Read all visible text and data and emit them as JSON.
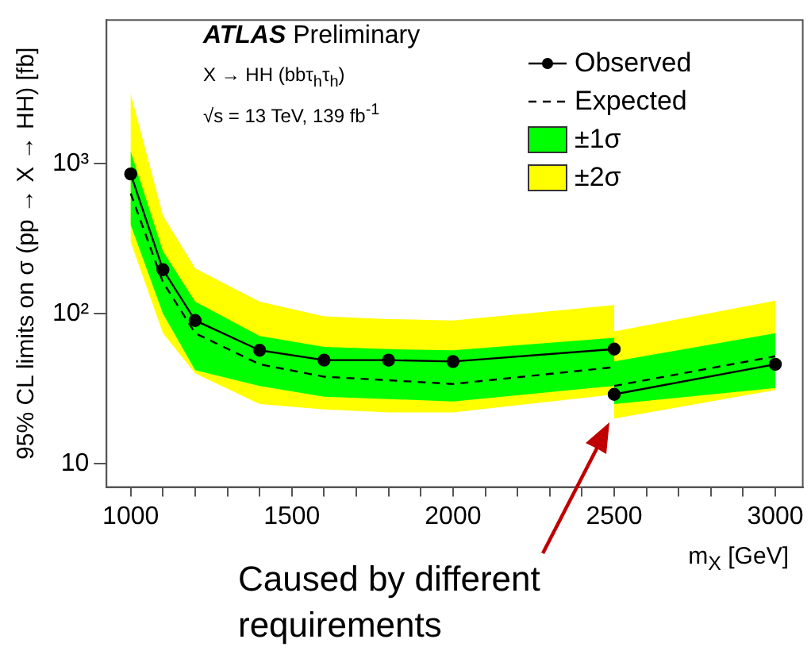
{
  "chart_data": {
    "type": "line",
    "title": "ATLAS Preliminary",
    "xlabel": "m$_{X}$ [GeV]",
    "ylabel": "95% CL limits on σ (pp → X → HH) [fb]",
    "annotations": [
      "X → HH (bbτ$_{h}$τ$_{h}$)",
      "√s = 13 TeV, 139 fb$^{-1}$",
      "Caused by different requirements"
    ],
    "log": "y",
    "xlim": [
      925,
      3085
    ],
    "ylim": [
      7,
      9000
    ],
    "xticks": [
      1000,
      {
        "value": 1100,
        "label": null
      },
      {
        "value": 1200,
        "label": null
      },
      {
        "value": 1300,
        "label": null
      },
      {
        "value": 1400,
        "label": null
      },
      1500,
      {
        "value": 1600,
        "label": null
      },
      {
        "value": 1700,
        "label": null
      },
      {
        "value": 1800,
        "label": null
      },
      {
        "value": 1900,
        "label": null
      },
      2000,
      {
        "value": 2100,
        "label": null
      },
      {
        "value": 2200,
        "label": null
      },
      {
        "value": 2300,
        "label": null
      },
      {
        "value": 2400,
        "label": null
      },
      2500,
      {
        "value": 2600,
        "label": null
      },
      {
        "value": 2700,
        "label": null
      },
      {
        "value": 2800,
        "label": null
      },
      {
        "value": 2900,
        "label": null
      },
      3000
    ],
    "yticks": [
      10,
      {
        "value": 100,
        "label": "10²"
      },
      {
        "value": 1000,
        "label": "10³"
      }
    ],
    "legend": "top right",
    "series": [
      {
        "name": "Observed",
        "color": "#000000",
        "marker": "circle",
        "line_style": "solid",
        "x": [
          1000,
          1100,
          1200,
          1400,
          1600,
          1800,
          2000,
          2500,
          null,
          2500,
          3000
        ],
        "values": [
          850,
          196,
          90,
          57,
          49,
          49,
          48,
          58,
          null,
          29,
          46
        ]
      },
      {
        "name": "Expected",
        "color": "#000000",
        "marker": "none",
        "line_style": "dashed",
        "x": [
          1000,
          1100,
          1200,
          1400,
          1600,
          1800,
          2000,
          2500,
          null,
          2500,
          3000
        ],
        "values": [
          630,
          162,
          74,
          46,
          38,
          36,
          34,
          44,
          null,
          33,
          52
        ]
      },
      {
        "name": "±1σ",
        "type": "area",
        "color": "#00ff00",
        "x": [
          1000,
          1100,
          1200,
          1400,
          1600,
          1800,
          2000,
          2500,
          null,
          2500,
          3000
        ],
        "values": [
          null,
          null,
          null,
          null,
          null,
          null,
          null,
          null,
          null,
          null,
          null
        ],
        "lower": [
          390,
          100,
          42,
          33,
          28,
          27,
          26,
          33,
          null,
          25,
          32
        ],
        "upper": [
          1200,
          260,
          120,
          71,
          60,
          58,
          57,
          69,
          null,
          48,
          74
        ]
      },
      {
        "name": "±2σ",
        "type": "area",
        "color": "#ffff00",
        "x": [
          1000,
          1100,
          1200,
          1400,
          1600,
          1800,
          2000,
          2500,
          null,
          2500,
          3000
        ],
        "values": [
          null,
          null,
          null,
          null,
          null,
          null,
          null,
          null,
          null,
          null,
          null
        ],
        "lower": [
          300,
          74,
          40,
          25,
          23,
          22,
          22,
          29,
          null,
          20,
          31
        ],
        "upper": [
          2900,
          450,
          200,
          120,
          96,
          92,
          90,
          114,
          null,
          76,
          122
        ]
      }
    ]
  }
}
